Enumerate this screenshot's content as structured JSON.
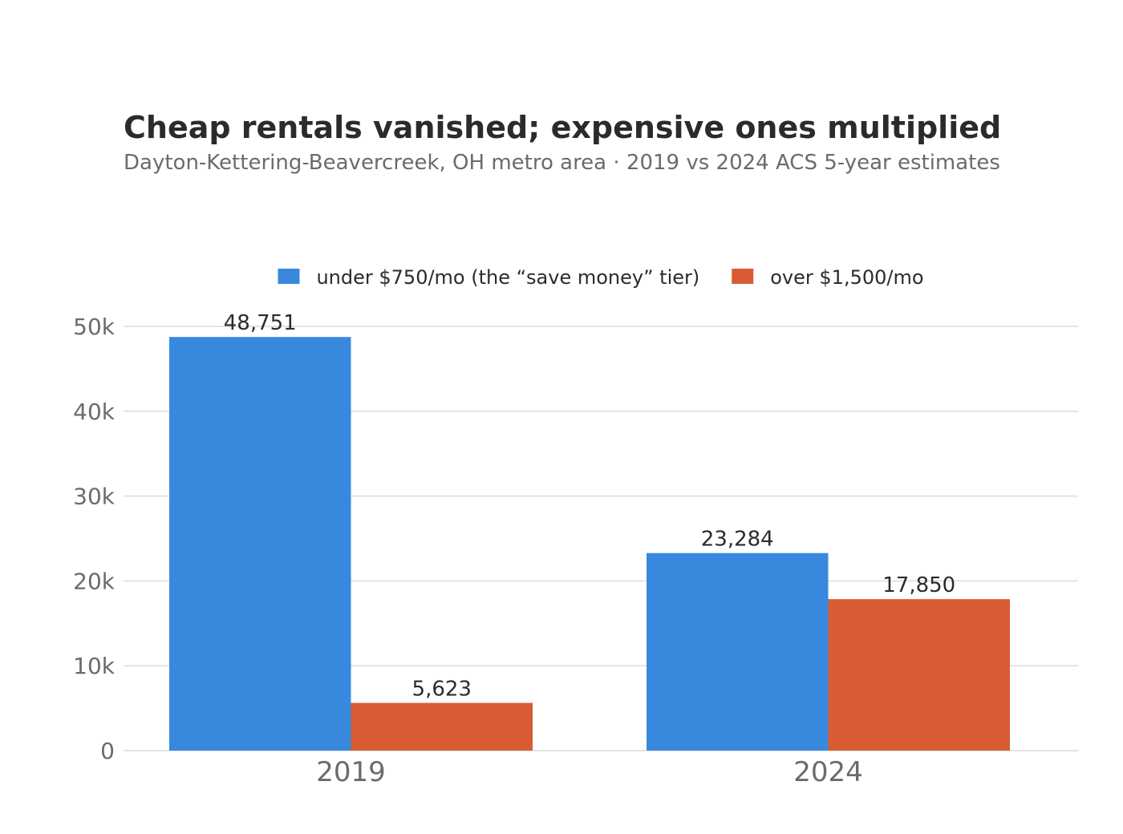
{
  "chart_data": {
    "type": "bar",
    "title": "Cheap rentals vanished; expensive ones multiplied",
    "subtitle": "Dayton-Kettering-Beavercreek, OH metro area  ·  2019 vs 2024 ACS 5-year estimates",
    "categories": [
      "2019",
      "2024"
    ],
    "series": [
      {
        "name": "under $750/mo  (the “save money” tier)",
        "color": "#3889de",
        "values": [
          48751,
          23284
        ],
        "labels": [
          "48,751",
          "23,284"
        ]
      },
      {
        "name": "over $1,500/mo",
        "color": "#d95b33",
        "values": [
          5623,
          17850
        ],
        "labels": [
          "5,623",
          "17,850"
        ]
      }
    ],
    "ylim": [
      0,
      50000
    ],
    "yticks": [
      0,
      10000,
      20000,
      30000,
      40000,
      50000
    ],
    "ytick_labels": [
      "0",
      "10k",
      "20k",
      "30k",
      "40k",
      "50k"
    ],
    "xlabel": "",
    "ylabel": "",
    "grid": true,
    "legend_position": "top-center"
  }
}
